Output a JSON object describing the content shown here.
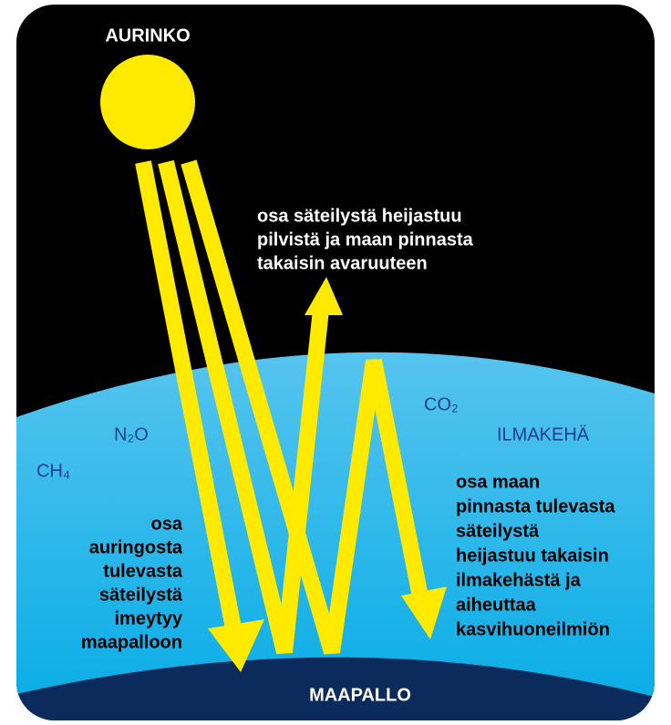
{
  "sun": "AURINKO",
  "reflected": [
    "osa säteilystä heijastuu",
    "pilvistä ja maan pinnasta",
    "takaisin avaruuteen"
  ],
  "gases": {
    "co2": "CO₂",
    "n2o": "N₂O",
    "ch4": "CH₄"
  },
  "atmosphere": "ILMAKEHÄ",
  "absorbed": [
    "osa",
    "auringosta",
    "tulevasta",
    "säteilystä",
    "imeytyy",
    "maapalloon"
  ],
  "greenhouse": [
    "osa maan",
    "pinnasta tulevasta",
    "säteilystä",
    "heijastuu takaisin",
    "ilmakehästä ja",
    "aiheuttaa",
    "kasvihuoneilmiön"
  ],
  "earth": "MAAPALLO"
}
